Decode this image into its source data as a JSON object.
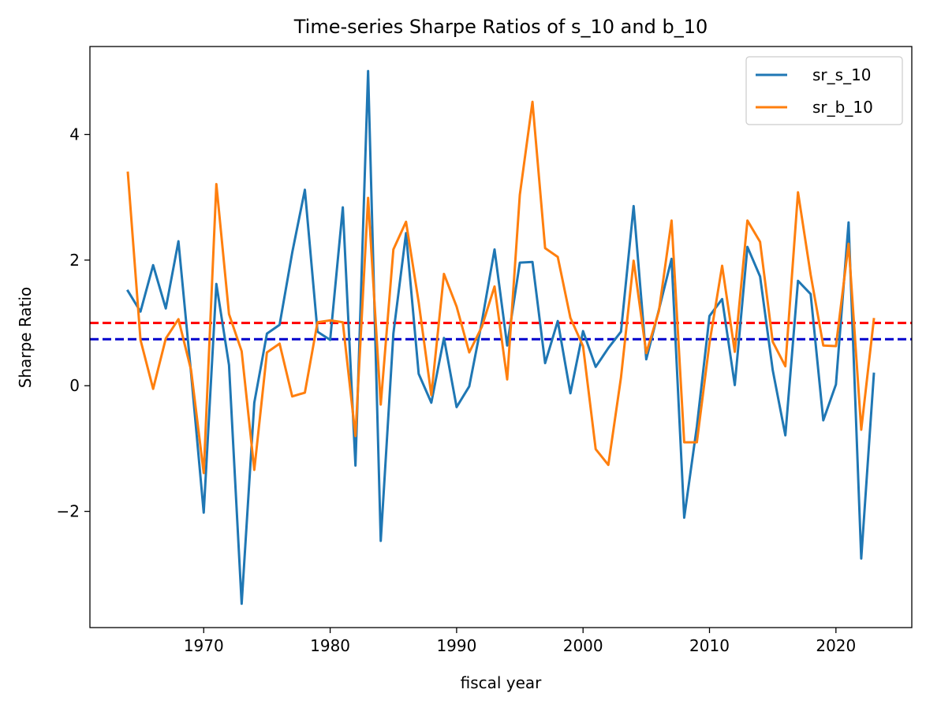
{
  "chart_data": {
    "type": "line",
    "title": "Time-series Sharpe Ratios of s_10 and b_10",
    "xlabel": "fiscal year",
    "ylabel": "Sharpe Ratio",
    "xlim": [
      1961,
      2026
    ],
    "ylim": [
      -3.85,
      5.4
    ],
    "xticks": [
      1970,
      1980,
      1990,
      2000,
      2010,
      2020
    ],
    "yticks": [
      -2,
      0,
      2,
      4
    ],
    "ytick_labels": [
      "−2",
      "0",
      "2",
      "4"
    ],
    "grid": false,
    "legend_position": "top-right",
    "x": [
      1964,
      1965,
      1966,
      1967,
      1968,
      1969,
      1970,
      1971,
      1972,
      1973,
      1974,
      1975,
      1976,
      1977,
      1978,
      1979,
      1980,
      1981,
      1982,
      1983,
      1984,
      1985,
      1986,
      1987,
      1988,
      1989,
      1990,
      1991,
      1992,
      1993,
      1994,
      1995,
      1996,
      1997,
      1998,
      1999,
      2000,
      2001,
      2002,
      2003,
      2004,
      2005,
      2006,
      2007,
      2008,
      2009,
      2010,
      2011,
      2012,
      2013,
      2014,
      2015,
      2016,
      2017,
      2018,
      2019,
      2020,
      2021,
      2022,
      2023
    ],
    "series": [
      {
        "name": "sr_s_10",
        "color": "#1f77b4",
        "values": [
          1.51,
          1.18,
          1.92,
          1.23,
          2.3,
          0.2,
          -2.02,
          1.62,
          0.33,
          -3.47,
          -0.27,
          0.83,
          0.97,
          2.12,
          3.12,
          0.86,
          0.73,
          2.84,
          -1.27,
          5.01,
          -2.47,
          0.83,
          2.43,
          0.19,
          -0.27,
          0.76,
          -0.34,
          -0.01,
          1.02,
          2.17,
          0.64,
          1.96,
          1.97,
          0.36,
          1.03,
          -0.12,
          0.87,
          0.3,
          0.6,
          0.86,
          2.86,
          0.42,
          1.21,
          2.02,
          -2.1,
          -0.65,
          1.11,
          1.38,
          0.01,
          2.21,
          1.74,
          0.25,
          -0.79,
          1.67,
          1.46,
          -0.55,
          0.02,
          2.6,
          -2.75,
          0.19
        ]
      },
      {
        "name": "sr_b_10",
        "color": "#ff7f0e",
        "values": [
          3.39,
          0.73,
          -0.05,
          0.75,
          1.06,
          0.25,
          -1.39,
          3.21,
          1.14,
          0.55,
          -1.34,
          0.53,
          0.67,
          -0.17,
          -0.11,
          1.01,
          1.04,
          1.01,
          -0.8,
          2.99,
          -0.3,
          2.17,
          2.61,
          1.33,
          -0.15,
          1.78,
          1.26,
          0.53,
          0.94,
          1.58,
          0.1,
          3.04,
          4.52,
          2.19,
          2.05,
          1.08,
          0.63,
          -1.01,
          -1.26,
          0.13,
          1.99,
          0.52,
          1.19,
          2.63,
          -0.9,
          -0.9,
          0.68,
          1.91,
          0.54,
          2.63,
          2.29,
          0.7,
          0.31,
          3.08,
          1.77,
          0.64,
          0.63,
          2.26,
          -0.7,
          1.06
        ]
      }
    ],
    "hlines": [
      {
        "value": 1.0,
        "color": "#ff0000",
        "style": "dashed"
      },
      {
        "value": 0.74,
        "color": "#0000cd",
        "style": "dashed"
      }
    ]
  }
}
